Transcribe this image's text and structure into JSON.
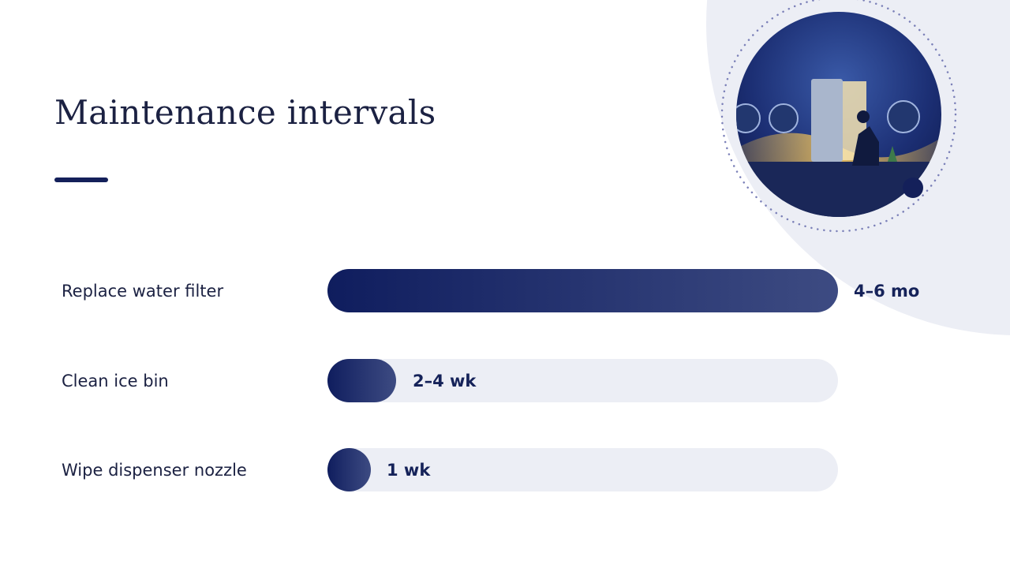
{
  "title": "Maintenance intervals",
  "rows": [
    {
      "label": "Replace water filter",
      "interval": "4–6 mo"
    },
    {
      "label": "Clean ice bin",
      "interval": "2–4 wk"
    },
    {
      "label": "Wipe dispenser nozzle",
      "interval": "1 wk"
    }
  ]
}
